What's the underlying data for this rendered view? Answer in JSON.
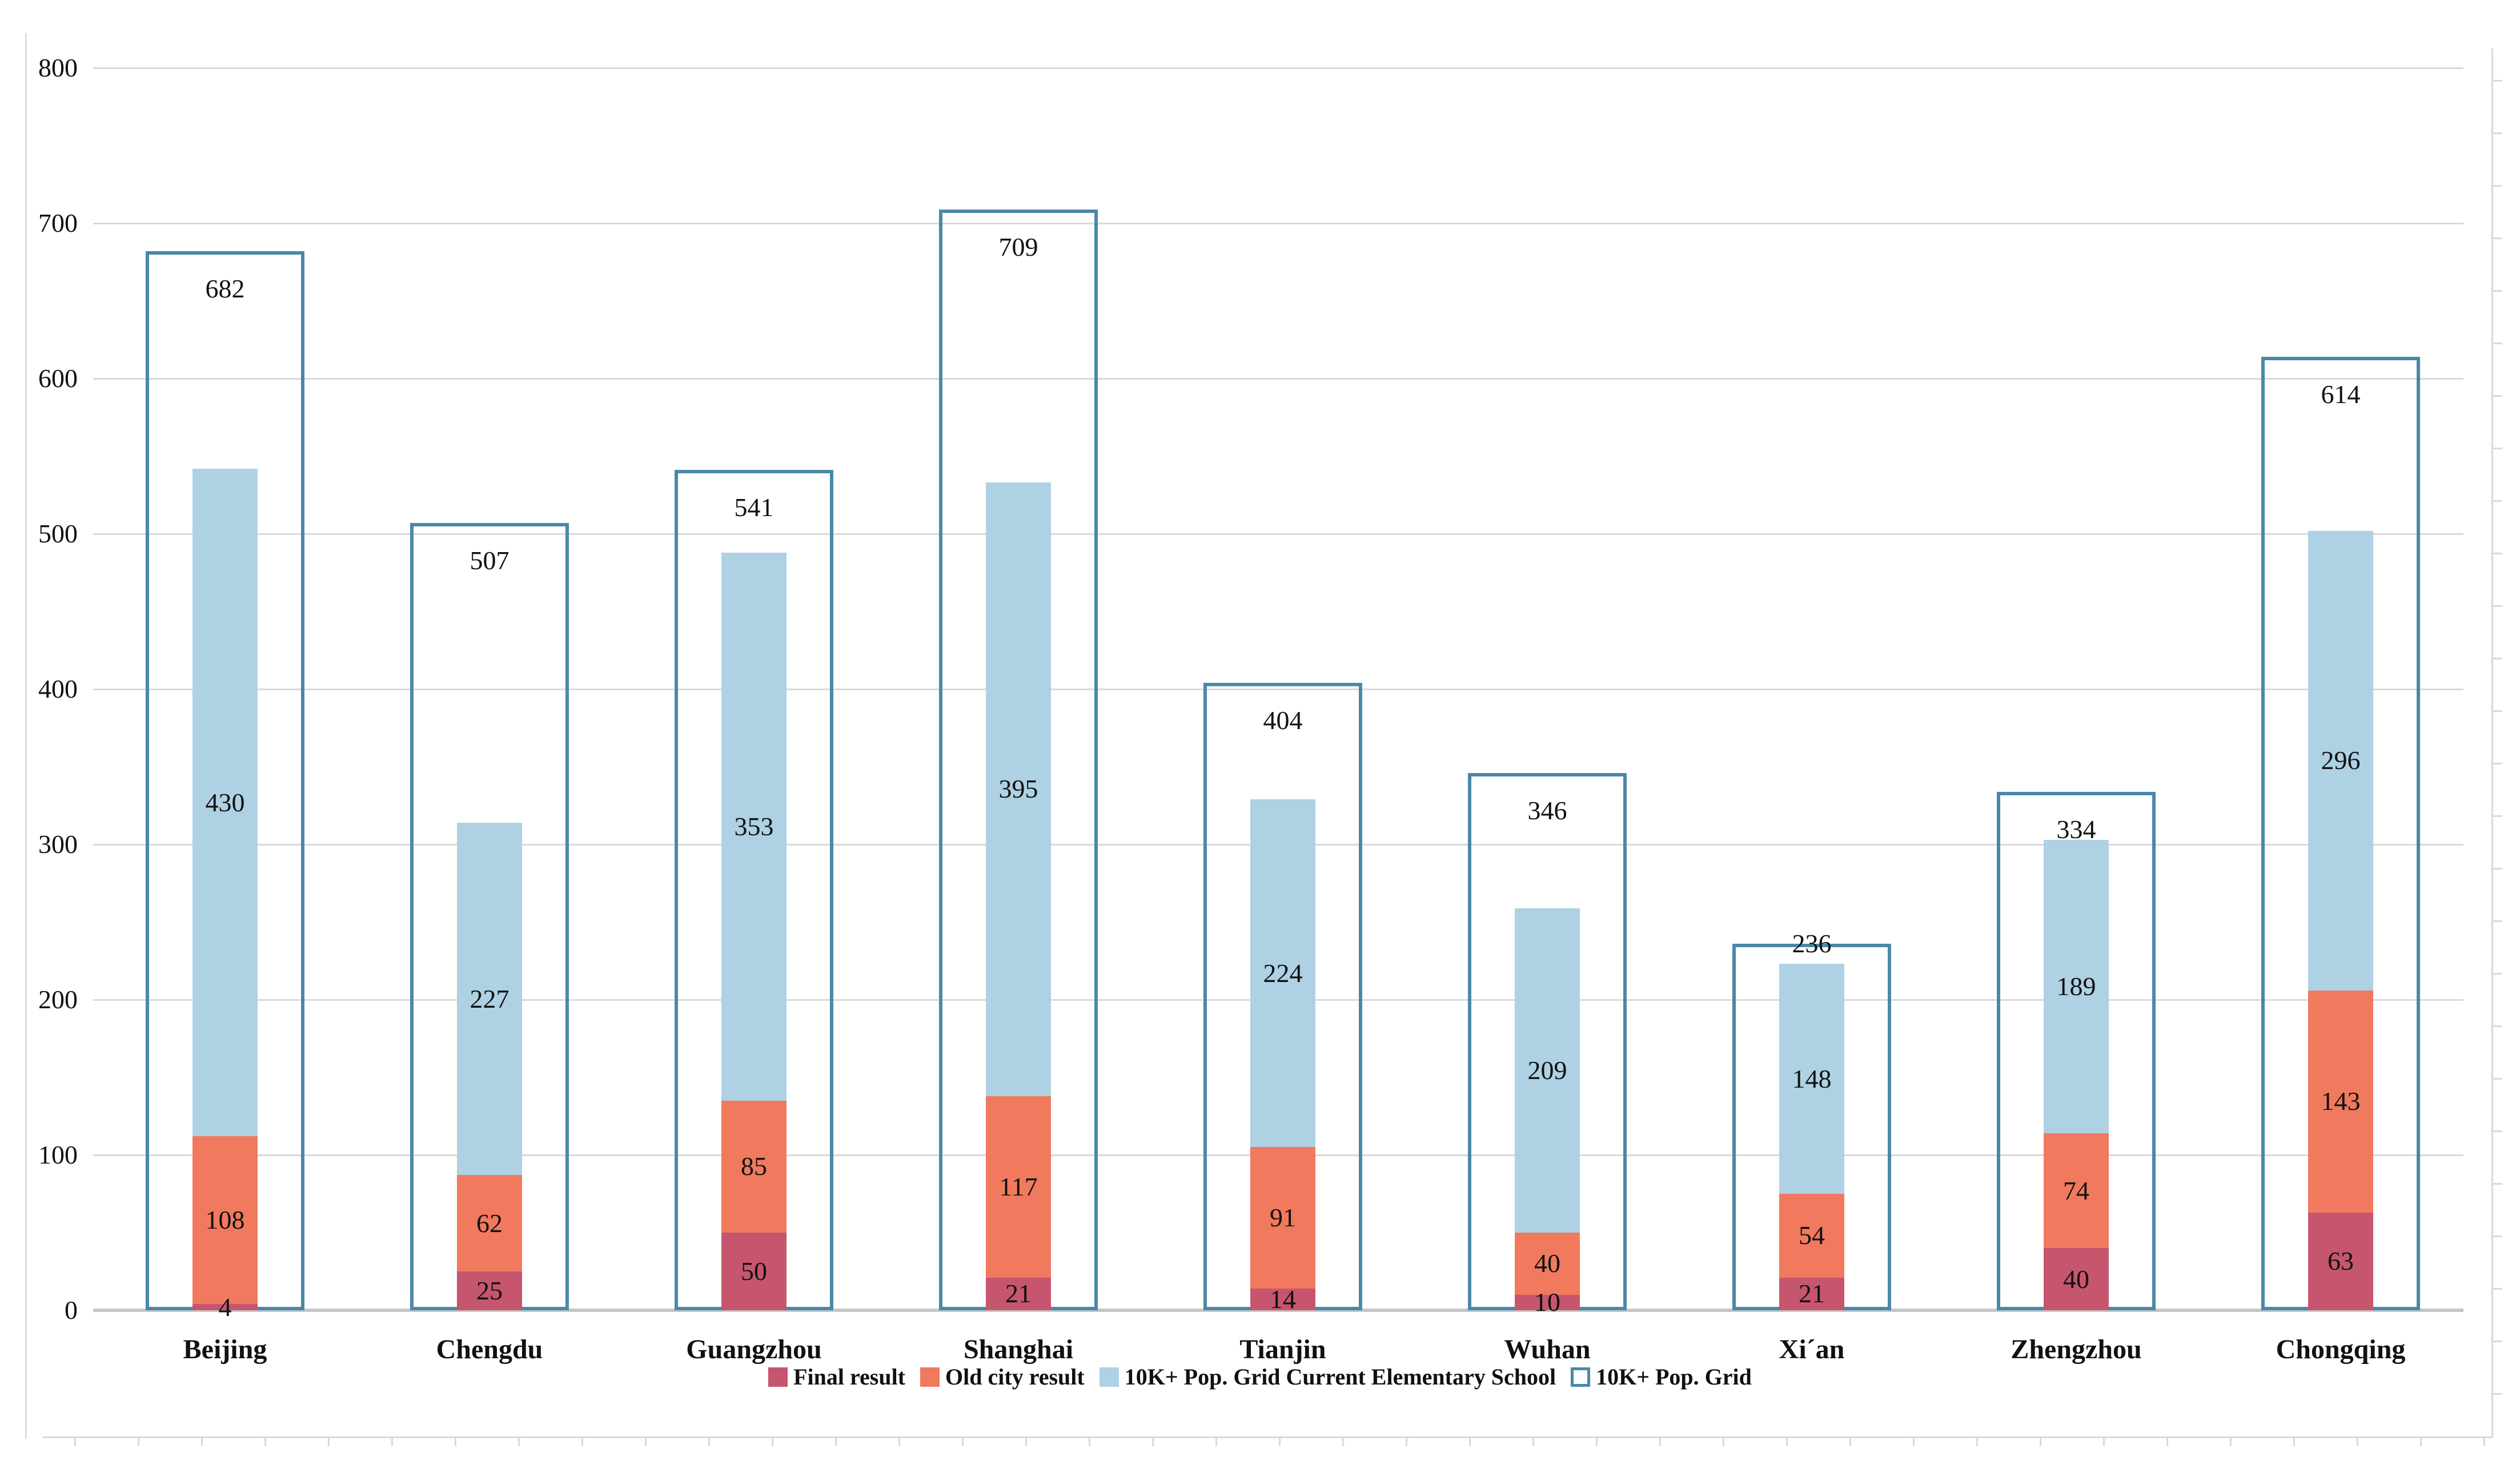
{
  "chart_data": {
    "type": "bar",
    "subtype": "stacked-columns-with-outline-column",
    "title": "",
    "categories": [
      "Beijing",
      "Chengdu",
      "Guangzhou",
      "Shanghai",
      "Tianjin",
      "Wuhan",
      "Xi´an",
      "Zhengzhou",
      "Chongqing"
    ],
    "series": [
      {
        "name": "Final result",
        "role": "stack",
        "color": "#c5566e",
        "values": [
          4,
          25,
          50,
          21,
          14,
          10,
          21,
          40,
          63
        ]
      },
      {
        "name": "Old city result",
        "role": "stack",
        "color": "#f0795e",
        "values": [
          108,
          62,
          85,
          117,
          91,
          40,
          54,
          74,
          143
        ]
      },
      {
        "name": "10K+ Pop. Grid Current Elementary School",
        "role": "stack",
        "color": "#aed1e4",
        "values": [
          430,
          227,
          353,
          395,
          224,
          209,
          148,
          189,
          296
        ]
      },
      {
        "name": "10K+ Pop. Grid",
        "role": "outline",
        "color": "#ffffff",
        "border_color": "#4a88a8",
        "values": [
          682,
          507,
          541,
          709,
          404,
          346,
          236,
          334,
          614
        ]
      }
    ],
    "ylim": [
      0,
      800
    ],
    "ytick_step": 100,
    "ytick_labels": [
      "0",
      "100",
      "200",
      "300",
      "400",
      "500",
      "600",
      "700",
      "800"
    ],
    "grid": true,
    "legend_position": "bottom",
    "legend": [
      "Final result",
      "Old city result",
      "10K+ Pop. Grid Current Elementary School",
      "10K+ Pop. Grid"
    ]
  },
  "colors": {
    "background": "#ffffff",
    "gridline": "#d9d9d9",
    "baseline": "#c6c6c6",
    "frame": "#dcdcdc",
    "ruler": "#d9d9d9",
    "text": "#111111",
    "final_result": "#c5566e",
    "old_city_result": "#f0795e",
    "elementary_school": "#aed1e4",
    "pop_grid_outline": "#4a88a8"
  }
}
